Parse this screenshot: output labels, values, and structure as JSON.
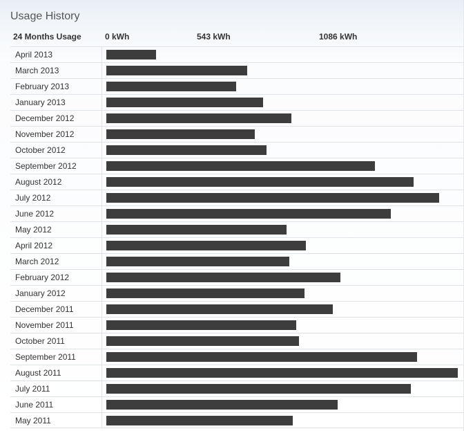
{
  "header": {
    "title": "Usage History",
    "column_label": "24 Months Usage",
    "ticks": [
      "0 kWh",
      "543 kWh",
      "1086 kWh"
    ]
  },
  "chart_data": {
    "type": "bar",
    "orientation": "horizontal",
    "title": "Usage History",
    "xlabel": "",
    "ylabel": "24 Months Usage",
    "unit": "kWh",
    "xlim": [
      0,
      1882
    ],
    "bar_color": "#3d3d3d",
    "categories": [
      "April 2013",
      "March 2013",
      "February 2013",
      "January 2013",
      "December 2012",
      "November 2012",
      "October 2012",
      "September 2012",
      "August 2012",
      "July 2012",
      "June 2012",
      "May 2012",
      "April 2012",
      "March 2012",
      "February 2012",
      "January 2012",
      "December 2011",
      "November 2011",
      "October 2011",
      "September 2011",
      "August 2011",
      "July 2011",
      "June 2011",
      "May 2011"
    ],
    "values": [
      265,
      755,
      696,
      839,
      990,
      795,
      858,
      1440,
      1645,
      1783,
      1522,
      966,
      1070,
      980,
      1252,
      1060,
      1212,
      1016,
      1030,
      1663,
      1882,
      1630,
      1237,
      999
    ]
  }
}
